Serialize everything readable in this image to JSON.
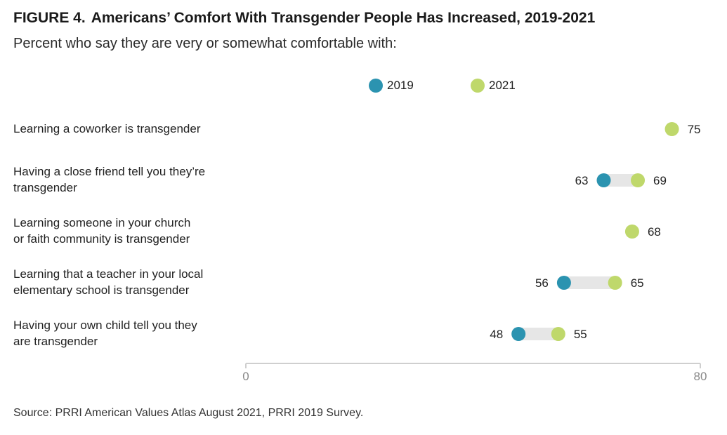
{
  "figure_label": "FIGURE 4.",
  "title": "Americans’ Comfort With Transgender People Has Increased, 2019-2021",
  "subtitle": "Percent who say they are very or somewhat comfortable with:",
  "source": "Source: PRRI American Values Atlas August 2021, PRRI 2019 Survey.",
  "colors": {
    "series_2019": "#2b93b0",
    "series_2021": "#bfd86b",
    "connector": "#e6e6e6",
    "axis": "#cfcfcf"
  },
  "chart_data": {
    "type": "dumbbell",
    "xlim": [
      0,
      80
    ],
    "x_ticks": [
      "0",
      "80"
    ],
    "series": [
      {
        "name": "2019",
        "color": "#2b93b0"
      },
      {
        "name": "2021",
        "color": "#bfd86b"
      }
    ],
    "categories": [
      "Learning a coworker is transgender",
      "Having a close friend tell you they’re transgender",
      "Learning someone in your church or faith community is transgender",
      "Learning that a teacher in your local elementary school is transgender",
      "Having your own child tell you they are transgender"
    ],
    "rows": [
      {
        "label_lines": [
          "Learning a coworker is transgender"
        ],
        "v2019": null,
        "v2021": 75
      },
      {
        "label_lines": [
          "Having a close friend tell you they’re",
          "transgender"
        ],
        "v2019": 63,
        "v2021": 69
      },
      {
        "label_lines": [
          "Learning someone in your church",
          "or faith community is transgender"
        ],
        "v2019": null,
        "v2021": 68
      },
      {
        "label_lines": [
          "Learning that a teacher in your local",
          "elementary school is transgender"
        ],
        "v2019": 56,
        "v2021": 65
      },
      {
        "label_lines": [
          "Having your own child tell you they",
          "are transgender"
        ],
        "v2019": 48,
        "v2021": 55
      }
    ]
  }
}
